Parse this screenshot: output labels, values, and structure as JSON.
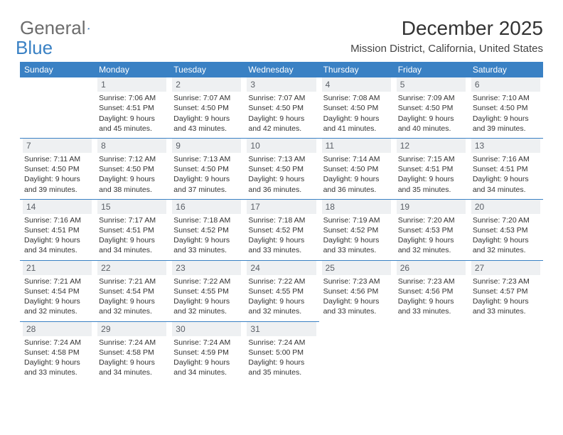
{
  "logo": {
    "text1": "General",
    "text2": "Blue"
  },
  "title": "December 2025",
  "location": "Mission District, California, United States",
  "day_header_bg": "#3a81c4",
  "day_header_fg": "#ffffff",
  "daynum_bg": "#eef0f2",
  "daynum_fg": "#5a5f66",
  "border_color": "#3a81c4",
  "day_labels": [
    "Sunday",
    "Monday",
    "Tuesday",
    "Wednesday",
    "Thursday",
    "Friday",
    "Saturday"
  ],
  "grid": [
    [
      null,
      {
        "n": "1",
        "sr": "7:06 AM",
        "ss": "4:51 PM",
        "dl": "9 hours and 45 minutes."
      },
      {
        "n": "2",
        "sr": "7:07 AM",
        "ss": "4:50 PM",
        "dl": "9 hours and 43 minutes."
      },
      {
        "n": "3",
        "sr": "7:07 AM",
        "ss": "4:50 PM",
        "dl": "9 hours and 42 minutes."
      },
      {
        "n": "4",
        "sr": "7:08 AM",
        "ss": "4:50 PM",
        "dl": "9 hours and 41 minutes."
      },
      {
        "n": "5",
        "sr": "7:09 AM",
        "ss": "4:50 PM",
        "dl": "9 hours and 40 minutes."
      },
      {
        "n": "6",
        "sr": "7:10 AM",
        "ss": "4:50 PM",
        "dl": "9 hours and 39 minutes."
      }
    ],
    [
      {
        "n": "7",
        "sr": "7:11 AM",
        "ss": "4:50 PM",
        "dl": "9 hours and 39 minutes."
      },
      {
        "n": "8",
        "sr": "7:12 AM",
        "ss": "4:50 PM",
        "dl": "9 hours and 38 minutes."
      },
      {
        "n": "9",
        "sr": "7:13 AM",
        "ss": "4:50 PM",
        "dl": "9 hours and 37 minutes."
      },
      {
        "n": "10",
        "sr": "7:13 AM",
        "ss": "4:50 PM",
        "dl": "9 hours and 36 minutes."
      },
      {
        "n": "11",
        "sr": "7:14 AM",
        "ss": "4:50 PM",
        "dl": "9 hours and 36 minutes."
      },
      {
        "n": "12",
        "sr": "7:15 AM",
        "ss": "4:51 PM",
        "dl": "9 hours and 35 minutes."
      },
      {
        "n": "13",
        "sr": "7:16 AM",
        "ss": "4:51 PM",
        "dl": "9 hours and 34 minutes."
      }
    ],
    [
      {
        "n": "14",
        "sr": "7:16 AM",
        "ss": "4:51 PM",
        "dl": "9 hours and 34 minutes."
      },
      {
        "n": "15",
        "sr": "7:17 AM",
        "ss": "4:51 PM",
        "dl": "9 hours and 34 minutes."
      },
      {
        "n": "16",
        "sr": "7:18 AM",
        "ss": "4:52 PM",
        "dl": "9 hours and 33 minutes."
      },
      {
        "n": "17",
        "sr": "7:18 AM",
        "ss": "4:52 PM",
        "dl": "9 hours and 33 minutes."
      },
      {
        "n": "18",
        "sr": "7:19 AM",
        "ss": "4:52 PM",
        "dl": "9 hours and 33 minutes."
      },
      {
        "n": "19",
        "sr": "7:20 AM",
        "ss": "4:53 PM",
        "dl": "9 hours and 32 minutes."
      },
      {
        "n": "20",
        "sr": "7:20 AM",
        "ss": "4:53 PM",
        "dl": "9 hours and 32 minutes."
      }
    ],
    [
      {
        "n": "21",
        "sr": "7:21 AM",
        "ss": "4:54 PM",
        "dl": "9 hours and 32 minutes."
      },
      {
        "n": "22",
        "sr": "7:21 AM",
        "ss": "4:54 PM",
        "dl": "9 hours and 32 minutes."
      },
      {
        "n": "23",
        "sr": "7:22 AM",
        "ss": "4:55 PM",
        "dl": "9 hours and 32 minutes."
      },
      {
        "n": "24",
        "sr": "7:22 AM",
        "ss": "4:55 PM",
        "dl": "9 hours and 32 minutes."
      },
      {
        "n": "25",
        "sr": "7:23 AM",
        "ss": "4:56 PM",
        "dl": "9 hours and 33 minutes."
      },
      {
        "n": "26",
        "sr": "7:23 AM",
        "ss": "4:56 PM",
        "dl": "9 hours and 33 minutes."
      },
      {
        "n": "27",
        "sr": "7:23 AM",
        "ss": "4:57 PM",
        "dl": "9 hours and 33 minutes."
      }
    ],
    [
      {
        "n": "28",
        "sr": "7:24 AM",
        "ss": "4:58 PM",
        "dl": "9 hours and 33 minutes."
      },
      {
        "n": "29",
        "sr": "7:24 AM",
        "ss": "4:58 PM",
        "dl": "9 hours and 34 minutes."
      },
      {
        "n": "30",
        "sr": "7:24 AM",
        "ss": "4:59 PM",
        "dl": "9 hours and 34 minutes."
      },
      {
        "n": "31",
        "sr": "7:24 AM",
        "ss": "5:00 PM",
        "dl": "9 hours and 35 minutes."
      },
      null,
      null,
      null
    ]
  ],
  "labels": {
    "sunrise": "Sunrise:",
    "sunset": "Sunset:",
    "daylight": "Daylight:"
  }
}
